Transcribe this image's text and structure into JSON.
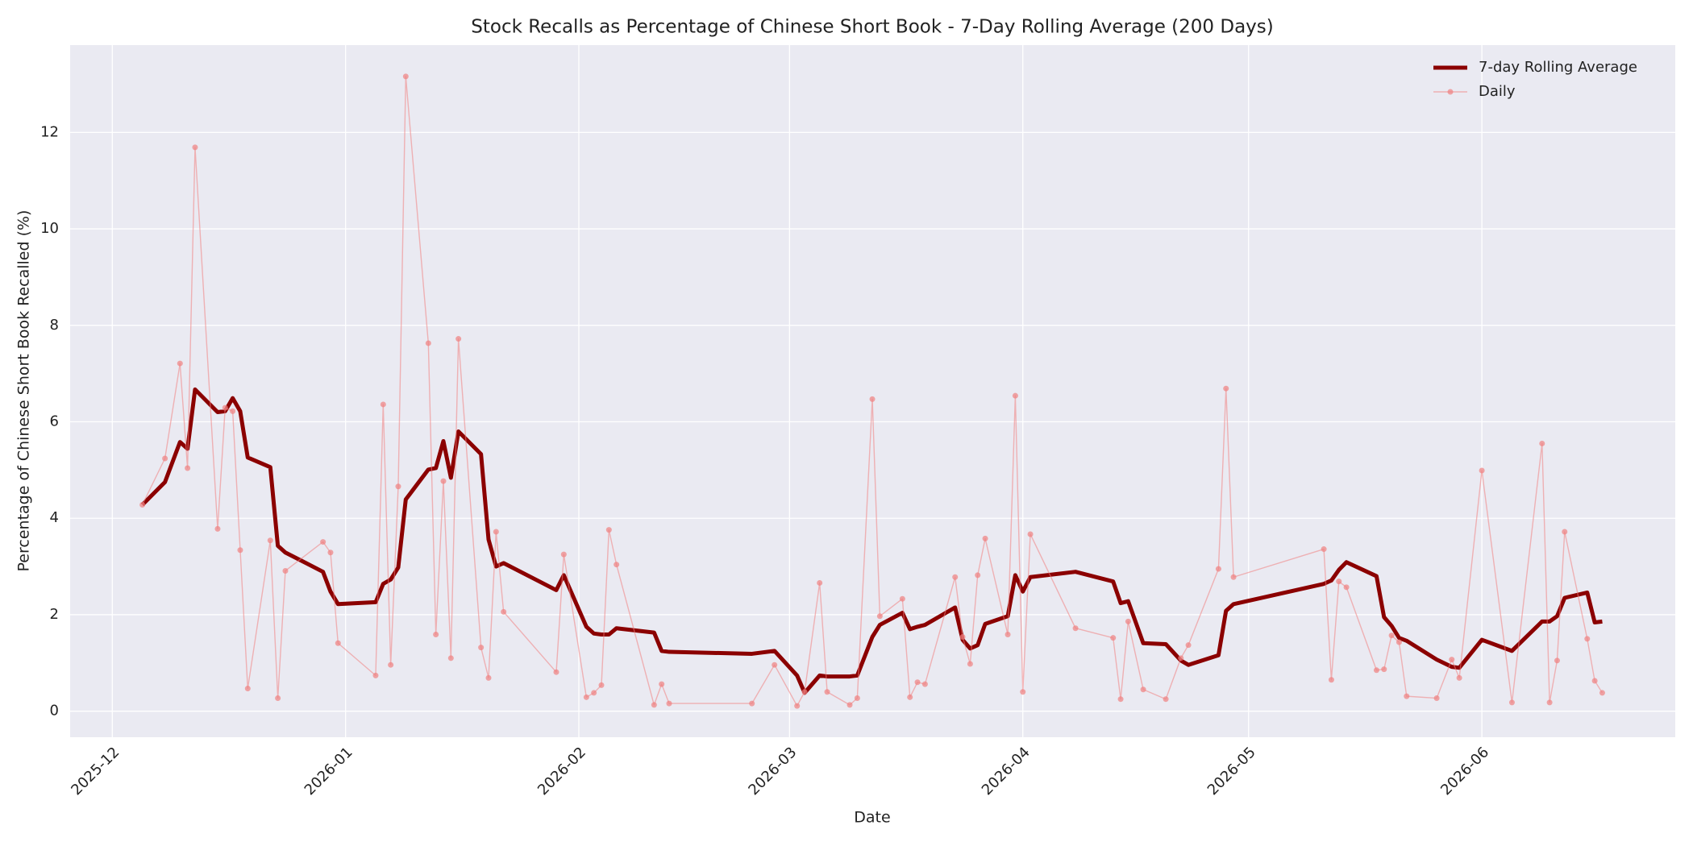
{
  "chart_data": {
    "type": "line",
    "title": "Stock Recalls as Percentage of Chinese Short Book - 7-Day Rolling Average (200 Days)",
    "xlabel": "Date",
    "ylabel": "Percentage of Chinese Short Book Recalled (%)",
    "x": [
      4,
      7,
      9,
      10,
      11,
      14,
      15,
      16,
      17,
      18,
      21,
      22,
      23,
      28,
      29,
      30,
      35,
      36,
      37,
      38,
      39,
      42,
      43,
      44,
      45,
      46,
      49,
      50,
      51,
      52,
      59,
      60,
      63,
      64,
      65,
      66,
      67,
      72,
      73,
      74,
      85,
      88,
      91,
      92,
      94,
      95,
      98,
      99,
      101,
      102,
      105,
      106,
      107,
      108,
      112,
      113,
      114,
      115,
      116,
      119,
      120,
      121,
      122,
      128,
      133,
      134,
      135,
      137,
      140,
      142,
      143,
      147,
      148,
      149,
      161,
      162,
      163,
      164,
      168,
      169,
      170,
      171,
      172,
      176,
      178,
      179,
      182,
      186,
      190,
      191,
      192,
      193,
      196,
      197,
      198
    ],
    "series": [
      {
        "name": "7-day Rolling Average",
        "color": "#8b0000",
        "values": [
          4.28,
          4.75,
          5.58,
          5.44,
          6.67,
          6.2,
          6.22,
          6.49,
          6.22,
          5.26,
          5.06,
          3.43,
          3.29,
          2.89,
          2.48,
          2.22,
          2.26,
          2.64,
          2.73,
          2.98,
          4.39,
          5.01,
          5.04,
          5.6,
          4.84,
          5.8,
          5.33,
          3.56,
          3.0,
          3.07,
          2.51,
          2.82,
          1.75,
          1.61,
          1.59,
          1.59,
          1.72,
          1.63,
          1.25,
          1.23,
          1.19,
          1.25,
          0.74,
          0.38,
          0.74,
          0.72,
          0.72,
          0.74,
          1.54,
          1.79,
          2.04,
          1.7,
          1.75,
          1.79,
          2.15,
          1.48,
          1.3,
          1.37,
          1.81,
          1.97,
          2.82,
          2.48,
          2.78,
          2.89,
          2.69,
          2.24,
          2.28,
          1.41,
          1.39,
          1.05,
          0.96,
          1.16,
          2.08,
          2.22,
          2.64,
          2.71,
          2.93,
          3.09,
          2.8,
          1.95,
          1.77,
          1.52,
          1.46,
          1.07,
          0.92,
          0.9,
          1.48,
          1.25,
          1.86,
          1.86,
          1.97,
          2.35,
          2.46,
          1.84,
          1.86
        ]
      },
      {
        "name": "Daily",
        "color": "#f08080",
        "markers": true,
        "values": [
          4.28,
          5.24,
          7.21,
          5.04,
          11.69,
          3.78,
          6.29,
          6.22,
          3.34,
          0.47,
          3.54,
          0.27,
          2.91,
          3.51,
          3.29,
          1.41,
          0.74,
          6.36,
          0.96,
          4.66,
          13.16,
          7.63,
          1.59,
          4.77,
          1.1,
          7.72,
          1.32,
          0.69,
          3.72,
          2.06,
          0.81,
          3.25,
          0.29,
          0.38,
          0.54,
          3.76,
          3.04,
          0.13,
          0.56,
          0.16,
          0.16,
          0.96,
          0.11,
          0.4,
          2.66,
          0.4,
          0.13,
          0.27,
          6.47,
          1.97,
          2.33,
          0.29,
          0.6,
          0.56,
          2.78,
          1.54,
          0.98,
          2.82,
          3.58,
          1.59,
          6.54,
          0.4,
          3.67,
          1.72,
          1.52,
          0.25,
          1.86,
          0.45,
          0.25,
          1.1,
          1.37,
          2.95,
          6.69,
          2.78,
          3.36,
          0.65,
          2.69,
          2.57,
          0.85,
          0.87,
          1.57,
          1.43,
          0.31,
          0.27,
          1.07,
          0.69,
          4.99,
          0.18,
          5.55,
          0.18,
          1.05,
          3.72,
          1.5,
          0.63,
          0.38
        ]
      }
    ],
    "xlim": [
      -5.6,
      207.7
    ],
    "xticks": [
      {
        "value": 0,
        "label": "2025-12"
      },
      {
        "value": 31,
        "label": "2026-01"
      },
      {
        "value": 62,
        "label": "2026-02"
      },
      {
        "value": 90,
        "label": "2026-03"
      },
      {
        "value": 121,
        "label": "2026-04"
      },
      {
        "value": 151,
        "label": "2026-05"
      },
      {
        "value": 182,
        "label": "2026-06"
      }
    ],
    "ylim": [
      -0.54,
      13.81
    ],
    "yticks": [
      0,
      2,
      4,
      6,
      8,
      10,
      12
    ],
    "grid": true,
    "legend": "upper right"
  }
}
